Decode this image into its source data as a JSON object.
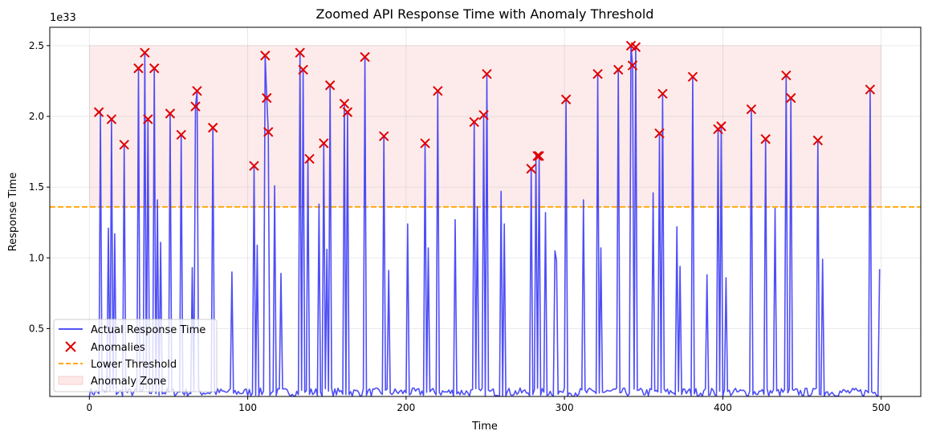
{
  "chart_data": {
    "type": "line",
    "title": "Zoomed API Response Time with Anomaly Threshold",
    "xlabel": "Time",
    "ylabel": "Response Time",
    "y_scale_label": "1e33",
    "xlim": [
      -25,
      525
    ],
    "ylim": [
      0.02,
      2.63
    ],
    "units_note": "y values in units of 1e33",
    "x_ticks": [
      0,
      100,
      200,
      300,
      400,
      500
    ],
    "x_tick_labels": [
      "0",
      "100",
      "200",
      "300",
      "400",
      "500"
    ],
    "y_ticks": [
      0.5,
      1.0,
      1.5,
      2.0,
      2.5
    ],
    "y_tick_labels": [
      "0.5",
      "1.0",
      "1.5",
      "2.0",
      "2.5"
    ],
    "grid": true,
    "legend_position": "lower-left",
    "colors": {
      "line": "#3b3bf5",
      "anomaly": "#e00000",
      "threshold": "#ffa500",
      "zone": "#fde8e8"
    },
    "legend": [
      {
        "label": "Actual Response Time",
        "kind": "line"
      },
      {
        "label": "Anomalies",
        "kind": "marker"
      },
      {
        "label": "Lower Threshold",
        "kind": "dashed"
      },
      {
        "label": "Anomaly Zone",
        "kind": "patch"
      }
    ],
    "threshold": 1.36,
    "anomaly_zone": {
      "x": [
        0,
        500
      ],
      "y": [
        1.36,
        2.5
      ]
    },
    "baseline": 0.05,
    "spikes": [
      [
        7,
        2.03
      ],
      [
        12,
        1.21
      ],
      [
        14,
        1.98
      ],
      [
        16,
        1.17
      ],
      [
        22,
        1.8
      ],
      [
        31,
        2.34
      ],
      [
        35,
        2.45
      ],
      [
        37,
        1.98
      ],
      [
        41,
        2.34
      ],
      [
        43,
        1.41
      ],
      [
        45,
        1.11
      ],
      [
        51,
        2.02
      ],
      [
        58,
        1.87
      ],
      [
        65,
        0.93
      ],
      [
        67,
        2.07
      ],
      [
        68,
        2.18
      ],
      [
        78,
        1.92
      ],
      [
        90,
        0.9
      ],
      [
        104,
        1.65
      ],
      [
        106,
        1.09
      ],
      [
        111,
        2.43
      ],
      [
        112,
        2.13
      ],
      [
        113,
        1.89
      ],
      [
        117,
        1.51
      ],
      [
        121,
        0.89
      ],
      [
        133,
        2.45
      ],
      [
        135,
        2.33
      ],
      [
        138,
        1.7
      ],
      [
        145,
        1.38
      ],
      [
        148,
        1.81
      ],
      [
        150,
        1.06
      ],
      [
        152,
        2.22
      ],
      [
        161,
        2.09
      ],
      [
        163,
        2.03
      ],
      [
        174,
        2.42
      ],
      [
        186,
        1.86
      ],
      [
        189,
        0.91
      ],
      [
        201,
        1.24
      ],
      [
        212,
        1.81
      ],
      [
        214,
        1.07
      ],
      [
        220,
        2.18
      ],
      [
        231,
        1.27
      ],
      [
        243,
        1.96
      ],
      [
        245,
        1.36
      ],
      [
        249,
        2.01
      ],
      [
        251,
        2.3
      ],
      [
        260,
        1.47
      ],
      [
        262,
        1.24
      ],
      [
        279,
        1.63
      ],
      [
        282,
        1.72
      ],
      [
        284,
        1.72
      ],
      [
        288,
        1.32
      ],
      [
        294,
        1.05
      ],
      [
        295,
        0.98
      ],
      [
        301,
        2.12
      ],
      [
        312,
        1.41
      ],
      [
        321,
        2.3
      ],
      [
        323,
        1.07
      ],
      [
        334,
        2.33
      ],
      [
        342,
        2.5
      ],
      [
        343,
        2.36
      ],
      [
        345,
        2.49
      ],
      [
        356,
        1.46
      ],
      [
        360,
        1.88
      ],
      [
        362,
        2.16
      ],
      [
        371,
        1.22
      ],
      [
        373,
        0.94
      ],
      [
        381,
        2.28
      ],
      [
        390,
        0.88
      ],
      [
        397,
        1.91
      ],
      [
        399,
        1.93
      ],
      [
        402,
        0.86
      ],
      [
        418,
        2.05
      ],
      [
        427,
        1.84
      ],
      [
        433,
        1.35
      ],
      [
        440,
        2.29
      ],
      [
        443,
        2.13
      ],
      [
        460,
        1.83
      ],
      [
        463,
        0.99
      ],
      [
        493,
        2.19
      ],
      [
        499,
        0.92
      ]
    ],
    "anomalies": [
      [
        6,
        2.03
      ],
      [
        14,
        1.98
      ],
      [
        22,
        1.8
      ],
      [
        31,
        2.34
      ],
      [
        35,
        2.45
      ],
      [
        37,
        1.98
      ],
      [
        41,
        2.34
      ],
      [
        51,
        2.02
      ],
      [
        58,
        1.87
      ],
      [
        67,
        2.07
      ],
      [
        68,
        2.18
      ],
      [
        78,
        1.92
      ],
      [
        104,
        1.65
      ],
      [
        111,
        2.43
      ],
      [
        112,
        2.13
      ],
      [
        113,
        1.89
      ],
      [
        133,
        2.45
      ],
      [
        135,
        2.33
      ],
      [
        139,
        1.7
      ],
      [
        148,
        1.81
      ],
      [
        152,
        2.22
      ],
      [
        161,
        2.09
      ],
      [
        163,
        2.03
      ],
      [
        174,
        2.42
      ],
      [
        186,
        1.86
      ],
      [
        212,
        1.81
      ],
      [
        220,
        2.18
      ],
      [
        243,
        1.96
      ],
      [
        249,
        2.01
      ],
      [
        251,
        2.3
      ],
      [
        279,
        1.63
      ],
      [
        283,
        1.72
      ],
      [
        284,
        1.72
      ],
      [
        301,
        2.12
      ],
      [
        321,
        2.3
      ],
      [
        334,
        2.33
      ],
      [
        342,
        2.5
      ],
      [
        343,
        2.36
      ],
      [
        345,
        2.49
      ],
      [
        360,
        1.88
      ],
      [
        362,
        2.16
      ],
      [
        381,
        2.28
      ],
      [
        397,
        1.91
      ],
      [
        399,
        1.93
      ],
      [
        418,
        2.05
      ],
      [
        427,
        1.84
      ],
      [
        440,
        2.29
      ],
      [
        443,
        2.13
      ],
      [
        460,
        1.83
      ],
      [
        493,
        2.19
      ]
    ]
  }
}
